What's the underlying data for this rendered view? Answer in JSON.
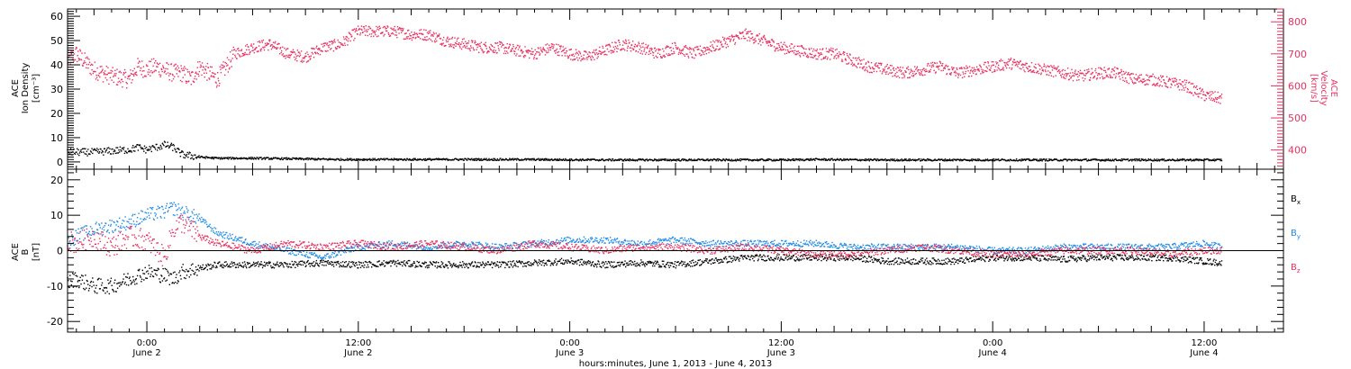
{
  "colors": {
    "black": "#000000",
    "pink": "#e8315f",
    "blue": "#1e8ae6"
  },
  "xaxis": {
    "title": "hours:minutes, June  1, 2013 - June  4, 2013",
    "ticks": [
      {
        "x": 24,
        "time": "0:00",
        "day": "June 2"
      },
      {
        "x": 36,
        "time": "12:00",
        "day": "June 2"
      },
      {
        "x": 48,
        "time": "0:00",
        "day": "June 3"
      },
      {
        "x": 60,
        "time": "12:00",
        "day": "June 3"
      },
      {
        "x": 72,
        "time": "0:00",
        "day": "June 4"
      },
      {
        "x": 84,
        "time": "12:00",
        "day": "June 4"
      }
    ]
  },
  "chart_data": [
    {
      "type": "scatter",
      "panel": "top",
      "xlim": [
        19.5,
        88.5
      ],
      "ylabel_left": [
        "ACE",
        "Ion Density",
        "[cm⁻³]"
      ],
      "ylabel_right": [
        "ACE",
        "Velocity",
        "[km/s]"
      ],
      "ylim_left": [
        -3,
        63
      ],
      "yticks_left": [
        0,
        10,
        20,
        30,
        40,
        50,
        60
      ],
      "ylim_right": [
        340,
        840
      ],
      "yticks_right": [
        400,
        500,
        600,
        700,
        800
      ],
      "series": [
        {
          "axis": "left",
          "color": "#000000",
          "x": [
            19.5,
            21,
            22,
            23,
            23.5,
            24,
            24.8,
            25,
            25.5,
            26,
            27,
            28,
            30,
            35,
            40,
            45,
            50,
            55,
            60,
            62,
            65,
            70,
            75,
            80,
            85
          ],
          "y": [
            4,
            4,
            4.5,
            5,
            6,
            5,
            6.5,
            7,
            6,
            3,
            2,
            1.5,
            1.5,
            1,
            1,
            1,
            0.8,
            0.8,
            0.8,
            1,
            0.8,
            0.8,
            0.8,
            0.8,
            0.8
          ]
        },
        {
          "axis": "right",
          "color": "#e8315f",
          "x": [
            19.5,
            20,
            21,
            22,
            23,
            23.5,
            24,
            24.5,
            25,
            25.5,
            26,
            26.5,
            27,
            27.5,
            28,
            29,
            30,
            31,
            32,
            33,
            34,
            35,
            36,
            37,
            38,
            39,
            40,
            41,
            42,
            43,
            44,
            45,
            46,
            47,
            48,
            49,
            50,
            51,
            52,
            53,
            54,
            55,
            56,
            57,
            58,
            59,
            60,
            61,
            62,
            63,
            64,
            65,
            66,
            67,
            68,
            69,
            70,
            71,
            72,
            73,
            74,
            75,
            76,
            77,
            78,
            79,
            80,
            81,
            82,
            83,
            84,
            85
          ],
          "y": [
            680,
            700,
            650,
            630,
            620,
            660,
            650,
            660,
            650,
            640,
            640,
            620,
            660,
            640,
            620,
            700,
            720,
            730,
            700,
            690,
            720,
            730,
            770,
            770,
            770,
            760,
            760,
            740,
            730,
            720,
            720,
            710,
            700,
            720,
            700,
            690,
            710,
            730,
            720,
            700,
            720,
            700,
            720,
            740,
            760,
            740,
            720,
            710,
            700,
            700,
            680,
            660,
            650,
            640,
            650,
            660,
            640,
            650,
            660,
            670,
            660,
            650,
            640,
            630,
            640,
            640,
            620,
            620,
            610,
            600,
            570,
            560
          ]
        }
      ]
    },
    {
      "type": "scatter",
      "panel": "bottom",
      "xlim": [
        19.5,
        88.5
      ],
      "ylabel": [
        "ACE",
        "B",
        "[nT]"
      ],
      "ylim": [
        -23,
        23
      ],
      "yticks": [
        -20,
        -10,
        0,
        10,
        20
      ],
      "series": [
        {
          "name": "Bx",
          "color": "#000000",
          "x": [
            19.5,
            20,
            21,
            22,
            23,
            24,
            25,
            25.5,
            26,
            27,
            28,
            30,
            32,
            34,
            36,
            38,
            40,
            42,
            44,
            46,
            48,
            50,
            52,
            54,
            56,
            58,
            60,
            62,
            64,
            66,
            68,
            70,
            72,
            74,
            76,
            78,
            80,
            82,
            84,
            85
          ],
          "y": [
            -9,
            -8,
            -10,
            -10,
            -8,
            -6,
            -7,
            -8,
            -6,
            -5,
            -4,
            -4,
            -4,
            -3.5,
            -4,
            -3.5,
            -4,
            -4,
            -4,
            -3.5,
            -3,
            -4,
            -3.5,
            -4,
            -3,
            -2,
            -2,
            -2,
            -2,
            -3,
            -3,
            -3,
            -2,
            -2,
            -2.5,
            -2,
            -2,
            -2,
            -3,
            -3.5
          ]
        },
        {
          "name": "By",
          "color": "#1e8ae6",
          "x": [
            19.5,
            20,
            21,
            22,
            23,
            24,
            25,
            25.5,
            26,
            27,
            28,
            30,
            32,
            34,
            36,
            38,
            40,
            42,
            44,
            46,
            48,
            50,
            52,
            54,
            56,
            58,
            60,
            62,
            64,
            66,
            68,
            70,
            72,
            74,
            76,
            78,
            80,
            82,
            84,
            85
          ],
          "y": [
            2,
            4,
            6,
            7,
            8,
            10,
            11,
            12,
            11,
            9,
            5,
            2,
            0,
            -2,
            1,
            2,
            1,
            2,
            1,
            2,
            3,
            3,
            2,
            3,
            2,
            2,
            2,
            2,
            1,
            1,
            1,
            1,
            0,
            0,
            1,
            1,
            1,
            1,
            2,
            1
          ]
        },
        {
          "name": "Bz",
          "color": "#e8315f",
          "x": [
            19.5,
            20,
            21,
            22,
            23,
            24,
            25,
            25.5,
            26,
            27,
            28,
            30,
            32,
            34,
            36,
            38,
            40,
            42,
            44,
            46,
            48,
            50,
            52,
            54,
            56,
            58,
            60,
            62,
            64,
            66,
            68,
            70,
            72,
            74,
            76,
            78,
            80,
            82,
            84,
            85
          ],
          "y": [
            3,
            2,
            4,
            1,
            4,
            3,
            -2,
            6,
            8,
            4,
            2,
            0,
            2,
            1,
            2,
            1,
            2,
            1,
            0,
            2,
            1,
            0,
            1,
            1,
            0,
            1,
            0,
            -1,
            -1,
            0,
            1,
            0,
            -1,
            -1,
            0,
            0,
            0,
            -1,
            0,
            0
          ]
        }
      ],
      "legend": [
        "Bx",
        "By",
        "Bz"
      ],
      "zero_line": true
    }
  ]
}
